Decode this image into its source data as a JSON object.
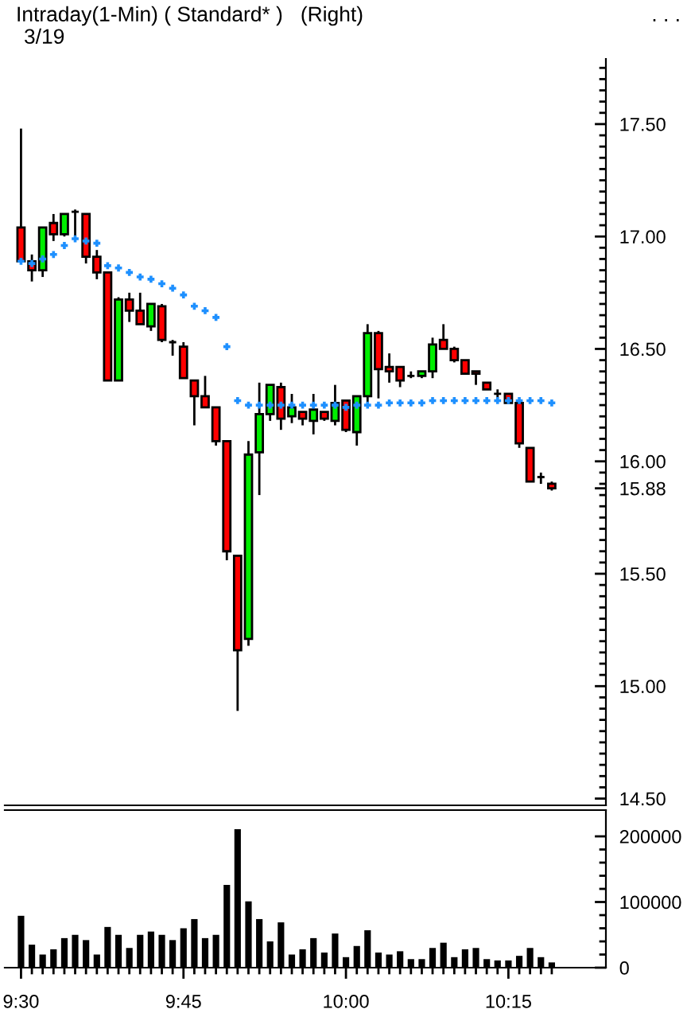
{
  "chart_data": [
    {
      "type": "candlestick",
      "title": "Intraday(1-Min) ( Standard* )   (Right)",
      "subtitle": "3/19",
      "annotations": [
        ". . ."
      ],
      "x": [
        9.5,
        9.5167,
        9.5333,
        9.55,
        9.5667,
        9.5833,
        9.6,
        9.6167,
        9.6333,
        9.65,
        9.6667,
        9.6833,
        9.7,
        9.7167,
        9.7333,
        9.75,
        9.7667,
        9.7833,
        9.8,
        9.8167,
        9.8333,
        9.85,
        9.8667,
        9.8833,
        9.9,
        9.9167,
        9.9333,
        9.95,
        9.9667,
        9.9833,
        10.0,
        10.0167,
        10.0333,
        10.05,
        10.0667,
        10.0833,
        10.1,
        10.1167,
        10.1333,
        10.15,
        10.1667,
        10.1833,
        10.2,
        10.2167,
        10.2333,
        10.25,
        10.2667,
        10.2833,
        10.3,
        10.3167
      ],
      "series": [
        {
          "type": "candlestick",
          "ohlc": [
            [
              17.04,
              17.48,
              16.88,
              16.89
            ],
            [
              16.89,
              16.92,
              16.8,
              16.85
            ],
            [
              16.85,
              17.04,
              16.82,
              17.04
            ],
            [
              17.06,
              17.1,
              16.98,
              17.01
            ],
            [
              17.01,
              17.1,
              17.0,
              17.1
            ],
            [
              17.11,
              17.12,
              16.99,
              17.11
            ],
            [
              17.1,
              17.1,
              16.88,
              16.91
            ],
            [
              16.91,
              16.94,
              16.81,
              16.84
            ],
            [
              16.84,
              16.84,
              16.36,
              16.36
            ],
            [
              16.36,
              16.73,
              16.36,
              16.72
            ],
            [
              16.72,
              16.75,
              16.62,
              16.67
            ],
            [
              16.67,
              16.75,
              16.61,
              16.61
            ],
            [
              16.6,
              16.7,
              16.58,
              16.7
            ],
            [
              16.69,
              16.7,
              16.53,
              16.54
            ],
            [
              16.53,
              16.54,
              16.47,
              16.53
            ],
            [
              16.51,
              16.53,
              16.37,
              16.37
            ],
            [
              16.36,
              16.36,
              16.16,
              16.29
            ],
            [
              16.29,
              16.38,
              16.24,
              16.24
            ],
            [
              16.24,
              16.24,
              16.07,
              16.09
            ],
            [
              16.09,
              16.09,
              15.56,
              15.6
            ],
            [
              15.58,
              15.58,
              14.89,
              15.16
            ],
            [
              15.21,
              16.09,
              15.18,
              16.03
            ],
            [
              16.04,
              16.35,
              15.85,
              16.21
            ],
            [
              16.21,
              16.34,
              16.18,
              16.34
            ],
            [
              16.33,
              16.35,
              16.14,
              16.19
            ],
            [
              16.2,
              16.3,
              16.17,
              16.24
            ],
            [
              16.22,
              16.22,
              16.16,
              16.19
            ],
            [
              16.18,
              16.3,
              16.12,
              16.23
            ],
            [
              16.22,
              16.22,
              16.18,
              16.19
            ],
            [
              16.18,
              16.34,
              16.16,
              16.26
            ],
            [
              16.27,
              16.27,
              16.13,
              16.14
            ],
            [
              16.13,
              16.29,
              16.07,
              16.29
            ],
            [
              16.29,
              16.61,
              16.26,
              16.57
            ],
            [
              16.57,
              16.58,
              16.28,
              16.41
            ],
            [
              16.42,
              16.48,
              16.35,
              16.4
            ],
            [
              16.42,
              16.42,
              16.33,
              16.36
            ],
            [
              16.38,
              16.4,
              16.37,
              16.38
            ],
            [
              16.38,
              16.4,
              16.37,
              16.4
            ],
            [
              16.4,
              16.55,
              16.37,
              16.52
            ],
            [
              16.54,
              16.61,
              16.5,
              16.5
            ],
            [
              16.5,
              16.51,
              16.44,
              16.45
            ],
            [
              16.45,
              16.45,
              16.39,
              16.39
            ],
            [
              16.4,
              16.4,
              16.34,
              16.39
            ],
            [
              16.35,
              16.35,
              16.32,
              16.32
            ],
            [
              16.3,
              16.32,
              16.28,
              16.3
            ],
            [
              16.3,
              16.3,
              16.26,
              16.26
            ],
            [
              16.26,
              16.26,
              16.06,
              16.08
            ],
            [
              16.06,
              16.06,
              15.91,
              15.91
            ],
            [
              15.93,
              15.95,
              15.9,
              15.93
            ],
            [
              15.9,
              15.91,
              15.87,
              15.88
            ]
          ],
          "colors": [
            "#ff0000",
            "#ff0000",
            "#00ee00",
            "#ff0000",
            "#00ee00",
            "#000000",
            "#ff0000",
            "#ff0000",
            "#ff0000",
            "#00ee00",
            "#ff0000",
            "#ff0000",
            "#00ee00",
            "#ff0000",
            "#000000",
            "#ff0000",
            "#ff0000",
            "#ff0000",
            "#ff0000",
            "#ff0000",
            "#ff0000",
            "#00ee00",
            "#00ee00",
            "#00ee00",
            "#ff0000",
            "#00ee00",
            "#ff0000",
            "#00ee00",
            "#ff0000",
            "#00ee00",
            "#ff0000",
            "#00ee00",
            "#00ee00",
            "#ff0000",
            "#ff0000",
            "#ff0000",
            "#000000",
            "#00ee00",
            "#00ee00",
            "#ff0000",
            "#ff0000",
            "#ff0000",
            "#ff0000",
            "#ff0000",
            "#000000",
            "#ff0000",
            "#ff0000",
            "#ff0000",
            "#000000",
            "#ff0000"
          ]
        },
        {
          "type": "scatter",
          "marker": "cross",
          "color": "#1e90ff",
          "values": [
            16.89,
            16.88,
            16.9,
            16.92,
            16.96,
            16.99,
            16.98,
            16.97,
            16.87,
            16.86,
            16.84,
            16.82,
            16.81,
            16.79,
            16.77,
            16.74,
            16.69,
            16.67,
            16.64,
            16.51,
            16.27,
            16.25,
            16.25,
            16.25,
            16.25,
            16.25,
            16.25,
            16.25,
            16.25,
            16.25,
            16.24,
            16.25,
            16.25,
            16.25,
            16.26,
            16.26,
            16.26,
            16.26,
            16.27,
            16.27,
            16.27,
            16.27,
            16.27,
            16.27,
            16.27,
            16.27,
            16.27,
            16.27,
            16.27,
            16.26
          ]
        }
      ],
      "xlim": [
        9.475,
        10.4
      ],
      "ylim": [
        14.47,
        17.79
      ],
      "tick_labels": "y",
      "yticks": [
        {
          "value": 14.5,
          "label": "14.50"
        },
        {
          "value": 14.55,
          "label": null
        },
        {
          "value": 14.6,
          "label": null
        },
        {
          "value": 14.65,
          "label": null
        },
        {
          "value": 14.7,
          "label": null
        },
        {
          "value": 14.75,
          "label": null
        },
        {
          "value": 14.8,
          "label": null
        },
        {
          "value": 14.85,
          "label": null
        },
        {
          "value": 14.9,
          "label": null
        },
        {
          "value": 14.95,
          "label": null
        },
        {
          "value": 15,
          "label": "15.00"
        },
        {
          "value": 15.05,
          "label": null
        },
        {
          "value": 15.1,
          "label": null
        },
        {
          "value": 15.15,
          "label": null
        },
        {
          "value": 15.2,
          "label": null
        },
        {
          "value": 15.25,
          "label": null
        },
        {
          "value": 15.3,
          "label": null
        },
        {
          "value": 15.35,
          "label": null
        },
        {
          "value": 15.4,
          "label": null
        },
        {
          "value": 15.45,
          "label": null
        },
        {
          "value": 15.5,
          "label": "15.50"
        },
        {
          "value": 15.55,
          "label": null
        },
        {
          "value": 15.6,
          "label": null
        },
        {
          "value": 15.65,
          "label": null
        },
        {
          "value": 15.7,
          "label": null
        },
        {
          "value": 15.75,
          "label": null
        },
        {
          "value": 15.8,
          "label": null
        },
        {
          "value": 15.85,
          "label": null
        },
        {
          "value": 15.88,
          "label": "15.88"
        },
        {
          "value": 15.9,
          "label": null
        },
        {
          "value": 15.95,
          "label": null
        },
        {
          "value": 16,
          "label": "16.00"
        },
        {
          "value": 16.05,
          "label": null
        },
        {
          "value": 16.1,
          "label": null
        },
        {
          "value": 16.15,
          "label": null
        },
        {
          "value": 16.2,
          "label": null
        },
        {
          "value": 16.25,
          "label": null
        },
        {
          "value": 16.3,
          "label": null
        },
        {
          "value": 16.35,
          "label": null
        },
        {
          "value": 16.4,
          "label": null
        },
        {
          "value": 16.45,
          "label": null
        },
        {
          "value": 16.5,
          "label": "16.50"
        },
        {
          "value": 16.55,
          "label": null
        },
        {
          "value": 16.6,
          "label": null
        },
        {
          "value": 16.65,
          "label": null
        },
        {
          "value": 16.7,
          "label": null
        },
        {
          "value": 16.75,
          "label": null
        },
        {
          "value": 16.8,
          "label": null
        },
        {
          "value": 16.85,
          "label": null
        },
        {
          "value": 16.9,
          "label": null
        },
        {
          "value": 16.95,
          "label": null
        },
        {
          "value": 17,
          "label": "17.00"
        },
        {
          "value": 17.05,
          "label": null
        },
        {
          "value": 17.1,
          "label": null
        },
        {
          "value": 17.15,
          "label": null
        },
        {
          "value": 17.2,
          "label": null
        },
        {
          "value": 17.25,
          "label": null
        },
        {
          "value": 17.3,
          "label": null
        },
        {
          "value": 17.35,
          "label": null
        },
        {
          "value": 17.4,
          "label": null
        },
        {
          "value": 17.45,
          "label": null
        },
        {
          "value": 17.5,
          "label": "17.50"
        },
        {
          "value": 17.55,
          "label": null
        },
        {
          "value": 17.6,
          "label": null
        },
        {
          "value": 17.65,
          "label": null
        },
        {
          "value": 17.7,
          "label": null
        },
        {
          "value": 17.75,
          "label": null
        }
      ]
    },
    {
      "type": "bar",
      "color": "#000000",
      "x": [
        9.5,
        9.5167,
        9.5333,
        9.55,
        9.5667,
        9.5833,
        9.6,
        9.6167,
        9.6333,
        9.65,
        9.6667,
        9.6833,
        9.7,
        9.7167,
        9.7333,
        9.75,
        9.7667,
        9.7833,
        9.8,
        9.8167,
        9.8333,
        9.85,
        9.8667,
        9.8833,
        9.9,
        9.9167,
        9.9333,
        9.95,
        9.9667,
        9.9833,
        10.0,
        10.0167,
        10.0333,
        10.05,
        10.0667,
        10.0833,
        10.1,
        10.1167,
        10.1333,
        10.15,
        10.1667,
        10.1833,
        10.2,
        10.2167,
        10.2333,
        10.25,
        10.2667,
        10.2833,
        10.3,
        10.3167
      ],
      "values": [
        79000,
        35000,
        20000,
        28000,
        45000,
        50000,
        42000,
        20000,
        62000,
        50000,
        30000,
        50000,
        55000,
        50000,
        42000,
        60000,
        74000,
        45000,
        50000,
        126000,
        211000,
        101000,
        74000,
        40000,
        69000,
        20000,
        28000,
        45000,
        23000,
        52000,
        16000,
        33000,
        57000,
        23000,
        20000,
        25000,
        13000,
        13000,
        30000,
        38000,
        16000,
        28000,
        30000,
        13000,
        11000,
        11000,
        18000,
        30000,
        16000,
        8000
      ],
      "xlim": [
        9.475,
        10.4
      ],
      "ylim": [
        0,
        240000
      ],
      "yticks": [
        0,
        {
          "value": 20000,
          "label": null
        },
        {
          "value": 40000,
          "label": null
        },
        {
          "value": 60000,
          "label": null
        },
        {
          "value": 80000,
          "label": null
        },
        100000,
        {
          "value": 120000,
          "label": null
        },
        {
          "value": 140000,
          "label": null
        },
        {
          "value": 160000,
          "label": null
        },
        {
          "value": 180000,
          "label": null
        },
        200000
      ],
      "xticks": [
        {
          "value": 9.5,
          "label": "9:30"
        },
        {
          "value": 9.5167,
          "label": null
        },
        {
          "value": 9.5333,
          "label": null
        },
        {
          "value": 9.55,
          "label": null
        },
        {
          "value": 9.5667,
          "label": null
        },
        {
          "value": 9.5833,
          "label": null
        },
        {
          "value": 9.6,
          "label": null
        },
        {
          "value": 9.6167,
          "label": null
        },
        {
          "value": 9.6333,
          "label": null
        },
        {
          "value": 9.65,
          "label": null
        },
        {
          "value": 9.6667,
          "label": null
        },
        {
          "value": 9.6833,
          "label": null
        },
        {
          "value": 9.7,
          "label": null
        },
        {
          "value": 9.7167,
          "label": null
        },
        {
          "value": 9.7333,
          "label": null
        },
        {
          "value": 9.75,
          "label": "9:45"
        },
        {
          "value": 9.7667,
          "label": null
        },
        {
          "value": 9.7833,
          "label": null
        },
        {
          "value": 9.8,
          "label": null
        },
        {
          "value": 9.8167,
          "label": null
        },
        {
          "value": 9.8333,
          "label": null
        },
        {
          "value": 9.85,
          "label": null
        },
        {
          "value": 9.8667,
          "label": null
        },
        {
          "value": 9.8833,
          "label": null
        },
        {
          "value": 9.9,
          "label": null
        },
        {
          "value": 9.9167,
          "label": null
        },
        {
          "value": 9.9333,
          "label": null
        },
        {
          "value": 9.95,
          "label": null
        },
        {
          "value": 9.9667,
          "label": null
        },
        {
          "value": 9.9833,
          "label": null
        },
        {
          "value": 10.0,
          "label": "10:00"
        },
        {
          "value": 10.0167,
          "label": null
        },
        {
          "value": 10.0333,
          "label": null
        },
        {
          "value": 10.05,
          "label": null
        },
        {
          "value": 10.0667,
          "label": null
        },
        {
          "value": 10.0833,
          "label": null
        },
        {
          "value": 10.1,
          "label": null
        },
        {
          "value": 10.1167,
          "label": null
        },
        {
          "value": 10.1333,
          "label": null
        },
        {
          "value": 10.15,
          "label": null
        },
        {
          "value": 10.1667,
          "label": null
        },
        {
          "value": 10.1833,
          "label": null
        },
        {
          "value": 10.2,
          "label": null
        },
        {
          "value": 10.2167,
          "label": null
        },
        {
          "value": 10.2333,
          "label": null
        },
        {
          "value": 10.25,
          "label": "10:15"
        },
        {
          "value": 10.2667,
          "label": null
        },
        {
          "value": 10.2833,
          "label": null
        },
        {
          "value": 10.3,
          "label": null
        },
        {
          "value": 10.3167,
          "label": null
        }
      ]
    }
  ]
}
